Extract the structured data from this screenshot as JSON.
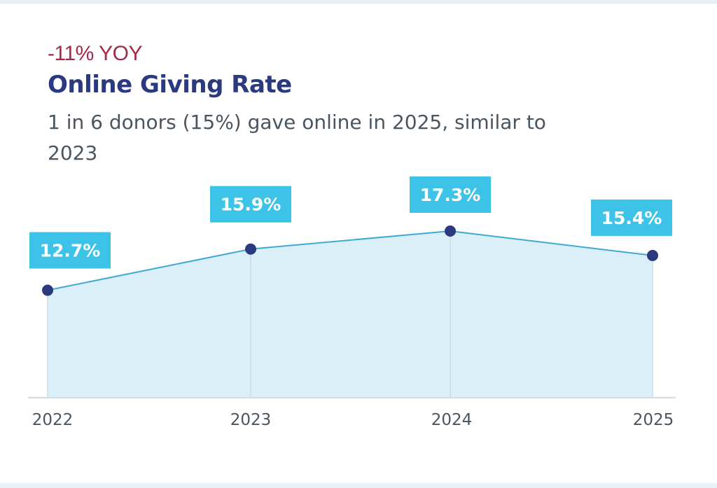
{
  "header": {
    "yoy": "-11% YOY",
    "title": "Online Giving Rate",
    "subtitle": "1 in 6 donors (15%) gave online in 2025, similar to 2023"
  },
  "colors": {
    "yoy": "#a52a45",
    "title": "#2b3a80",
    "area": "#daeff8",
    "line": "#3fa9d6",
    "point": "#2b3a80",
    "label_bg": "#3dc3e8"
  },
  "chart_data": {
    "type": "area",
    "title": "Online Giving Rate",
    "categories": [
      "2022",
      "2023",
      "2024",
      "2025"
    ],
    "values": [
      12.7,
      15.9,
      17.3,
      15.4
    ],
    "labels": [
      "12.7%",
      "15.9%",
      "17.3%",
      "15.4%"
    ],
    "xlabel": "",
    "ylabel": "",
    "ylim": [
      4.35,
      17.3
    ],
    "grid": false
  }
}
